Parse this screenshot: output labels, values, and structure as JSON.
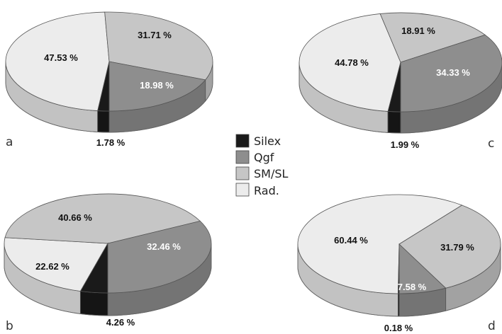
{
  "legend": {
    "items": [
      {
        "key": "silex",
        "label": "Silex",
        "color": "#1a1a1a"
      },
      {
        "key": "qgf",
        "label": "Qgf",
        "color": "#8e8e8e"
      },
      {
        "key": "smsl",
        "label": "SM/SL",
        "color": "#c6c6c6"
      },
      {
        "key": "rad",
        "label": "Rad.",
        "color": "#ececec"
      }
    ]
  },
  "chart_data": [
    {
      "type": "pie",
      "panel": "a",
      "slices": [
        {
          "category": "Silex",
          "value": 1.78,
          "label": "1.78 %"
        },
        {
          "category": "Qgf",
          "value": 18.98,
          "label": "18.98 %"
        },
        {
          "category": "SM/SL",
          "value": 31.71,
          "label": "31.71 %"
        },
        {
          "category": "Rad.",
          "value": 47.53,
          "label": "47.53 %"
        }
      ]
    },
    {
      "type": "pie",
      "panel": "b",
      "slices": [
        {
          "category": "Silex",
          "value": 4.26,
          "label": "4.26 %"
        },
        {
          "category": "Qgf",
          "value": 32.46,
          "label": "32.46 %"
        },
        {
          "category": "SM/SL",
          "value": 40.66,
          "label": "40.66 %"
        },
        {
          "category": "Rad.",
          "value": 22.62,
          "label": "22.62 %"
        }
      ]
    },
    {
      "type": "pie",
      "panel": "c",
      "slices": [
        {
          "category": "Silex",
          "value": 1.99,
          "label": "1.99 %"
        },
        {
          "category": "Qgf",
          "value": 34.33,
          "label": "34.33 %"
        },
        {
          "category": "SM/SL",
          "value": 18.91,
          "label": "18.91 %"
        },
        {
          "category": "Rad.",
          "value": 44.78,
          "label": "44.78 %"
        }
      ]
    },
    {
      "type": "pie",
      "panel": "d",
      "slices": [
        {
          "category": "Silex",
          "value": 0.18,
          "label": "0.18 %"
        },
        {
          "category": "Qgf",
          "value": 7.58,
          "label": "7.58 %"
        },
        {
          "category": "SM/SL",
          "value": 31.79,
          "label": "31.79 %"
        },
        {
          "category": "Rad.",
          "value": 60.44,
          "label": "60.44 %"
        }
      ]
    }
  ]
}
